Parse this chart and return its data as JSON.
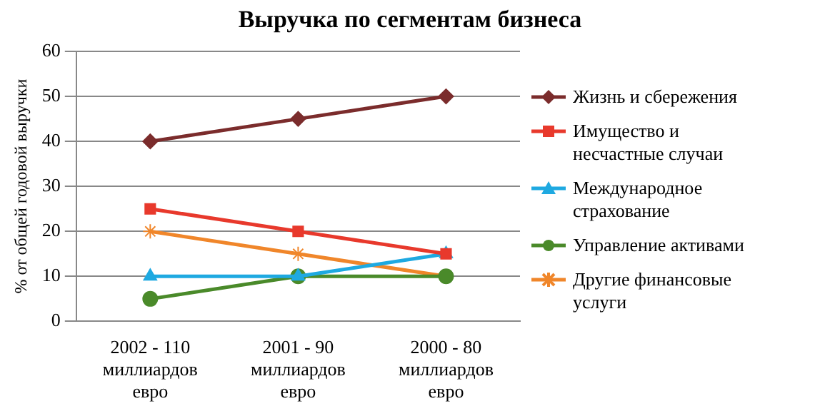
{
  "chart_data": {
    "type": "line",
    "title": "Выручка по сегментам бизнеса",
    "ylabel": "% от общей годовой выручки",
    "categories": [
      "2002 - 110 миллиардов евро",
      "2001 - 90 миллиардов евро",
      "2000 - 80 миллиардов евро"
    ],
    "series": [
      {
        "name": "Жизнь и сбережения",
        "color": "#7b2c2c",
        "marker": "diamond",
        "values": [
          40,
          45,
          50
        ]
      },
      {
        "name": "Имущество и несчастные случаи",
        "color": "#e8392c",
        "marker": "square",
        "values": [
          25,
          20,
          15
        ]
      },
      {
        "name": "Международное страхование",
        "color": "#1ea9e1",
        "marker": "triangle",
        "values": [
          10,
          10,
          15
        ]
      },
      {
        "name": "Управление активами",
        "color": "#4a8a2a",
        "marker": "circle",
        "values": [
          5,
          10,
          10
        ]
      },
      {
        "name": "Другие финансовые услуги",
        "color": "#f0862a",
        "marker": "cross",
        "values": [
          20,
          15,
          10
        ]
      }
    ],
    "ylim": [
      0,
      60
    ],
    "yticks": [
      0,
      10,
      20,
      30,
      40,
      50,
      60
    ],
    "grid": "y",
    "legend": "right"
  }
}
